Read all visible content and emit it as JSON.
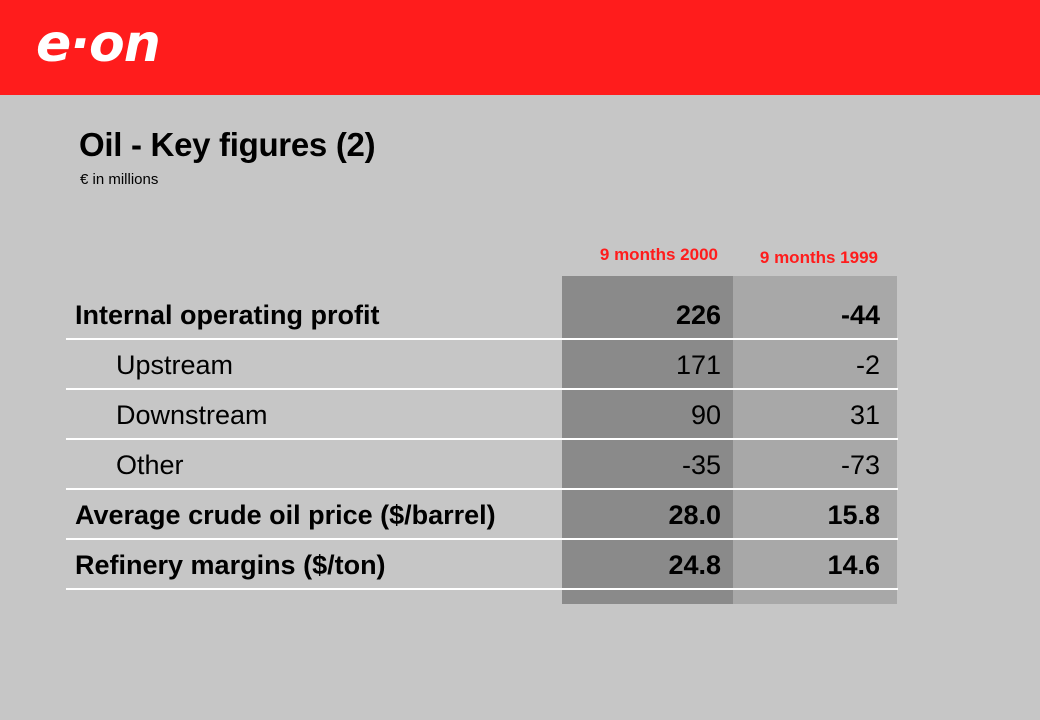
{
  "brand": {
    "logo_text": "e·on",
    "accent_color": "#ff1c1c"
  },
  "slide": {
    "title": "Oil - Key figures (2)",
    "subtitle": "€ in millions"
  },
  "columns": [
    {
      "label": "9 months 2000",
      "color": "#ff1c1c",
      "band_color": "#8a8a8a"
    },
    {
      "label": "9 months 1999",
      "color": "#ff1c1c",
      "band_color": "#a8a8a8"
    }
  ],
  "rows": [
    {
      "label": "Internal operating profit",
      "v2000": "226",
      "v1999": "-44",
      "bold": true,
      "indent": false
    },
    {
      "label": "Upstream",
      "v2000": "171",
      "v1999": "-2",
      "bold": false,
      "indent": true
    },
    {
      "label": "Downstream",
      "v2000": "90",
      "v1999": "31",
      "bold": false,
      "indent": true
    },
    {
      "label": "Other",
      "v2000": "-35",
      "v1999": "-73",
      "bold": false,
      "indent": true
    },
    {
      "label": "Average crude oil price ($/barrel)",
      "v2000": "28.0",
      "v1999": "15.8",
      "bold": true,
      "indent": false
    },
    {
      "label": "Refinery margins ($/ton)",
      "v2000": "24.8",
      "v1999": "14.6",
      "bold": true,
      "indent": false
    }
  ]
}
